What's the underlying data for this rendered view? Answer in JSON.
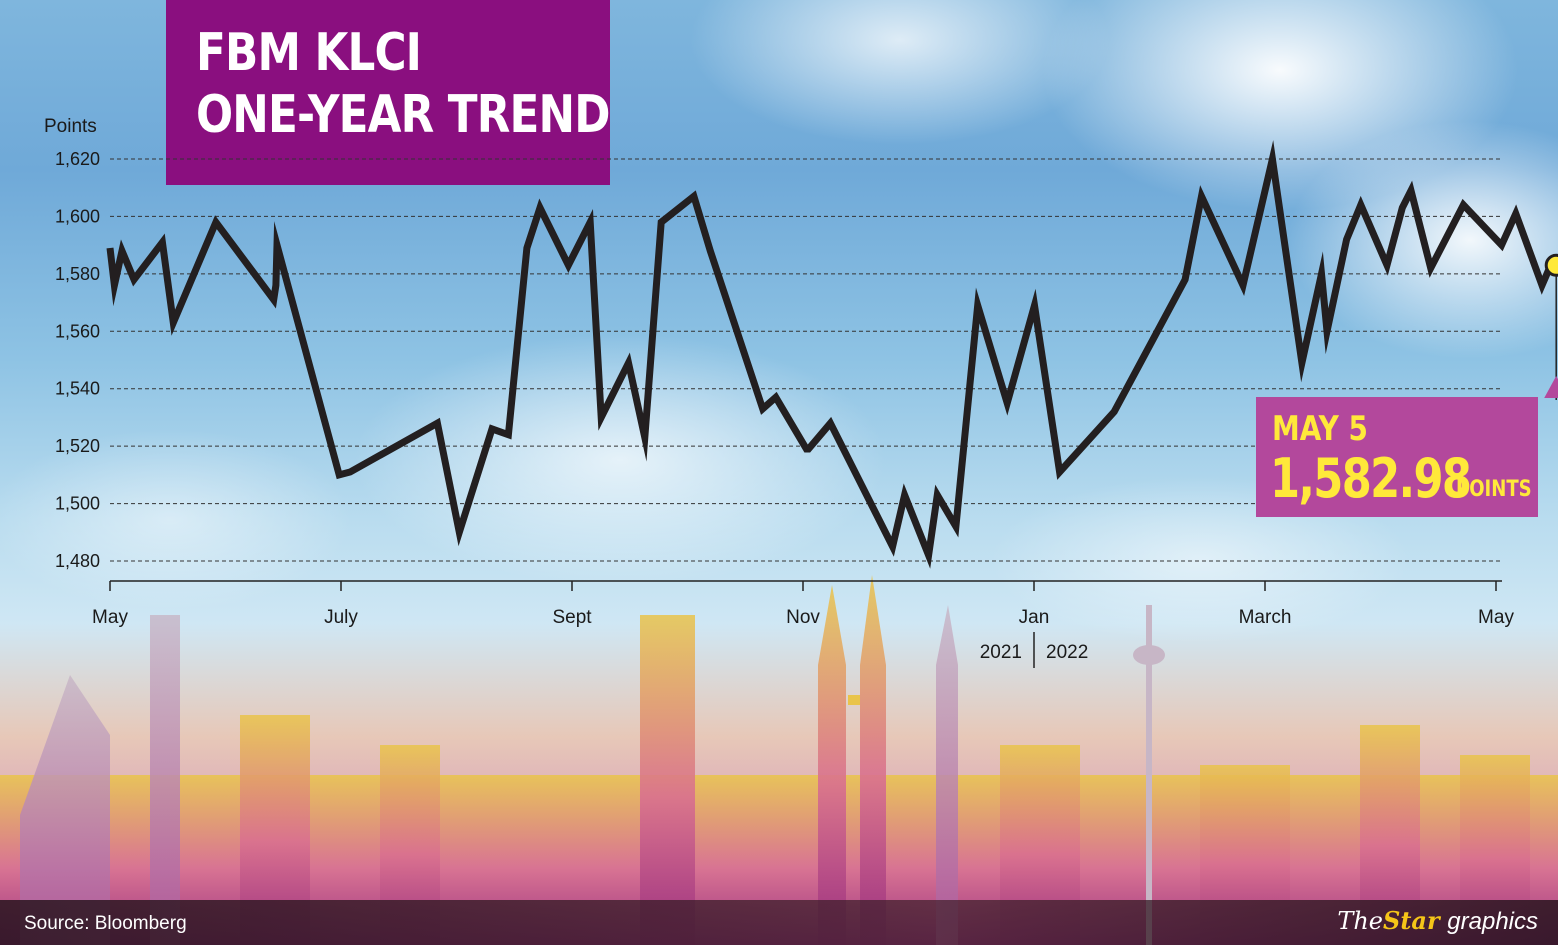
{
  "title_line1": "FBM KLCI",
  "title_line2": "ONE-YEAR TREND",
  "source": "Source: Bloomberg",
  "logo": {
    "the": "The",
    "star": "Star",
    "graphics": "graphics"
  },
  "callout": {
    "date": "MAY 5",
    "value": "1,582.98",
    "unit": "POINTS"
  },
  "chart_data": {
    "type": "line",
    "title": "FBM KLCI ONE-YEAR TREND",
    "ylabel": "Points",
    "xlabel": "",
    "ylim": [
      1480,
      1620
    ],
    "yticks": [
      1480,
      1500,
      1520,
      1540,
      1560,
      1580,
      1600,
      1620
    ],
    "ytick_labels": [
      "1,480",
      "1,500",
      "1,520",
      "1,540",
      "1,560",
      "1,580",
      "1,600",
      "1,620"
    ],
    "grid": true,
    "xticks": [
      {
        "label": "May",
        "month": 0
      },
      {
        "label": "July",
        "month": 2
      },
      {
        "label": "Sept",
        "month": 4
      },
      {
        "label": "Nov",
        "month": 6
      },
      {
        "label": "Jan",
        "month": 8
      },
      {
        "label": "March",
        "month": 10
      },
      {
        "label": "May",
        "month": 12
      }
    ],
    "year_labels": [
      "2021",
      "2022"
    ],
    "highlight": {
      "label": "May 5",
      "month": 12,
      "value": 1582.98
    },
    "series": [
      {
        "name": "",
        "x": [
          0.0,
          0.04,
          0.11,
          0.22,
          0.48,
          0.58,
          0.97,
          1.5,
          1.52,
          1.53,
          2.1,
          2.2,
          3.0,
          3.2,
          3.5,
          3.65,
          3.82,
          3.94,
          4.2,
          4.4,
          4.5,
          4.75,
          4.9,
          5.05,
          5.35,
          5.5,
          5.98,
          6.1,
          6.38,
          6.4,
          6.6,
          7.17,
          7.28,
          7.5,
          7.58,
          7.75,
          7.95,
          8.22,
          8.47,
          8.7,
          9.2,
          9.85,
          10.0,
          10.38,
          10.65,
          10.92,
          11.1,
          11.15,
          11.33,
          11.46,
          11.7,
          11.84,
          11.92,
          12.1,
          12.4,
          12.75,
          12.88,
          13.12,
          13.2,
          13.25
        ],
        "values": [
          1589,
          1576,
          1588,
          1578,
          1591,
          1563,
          1598,
          1571,
          1576,
          1590,
          1510,
          1511,
          1528,
          1490,
          1526,
          1524,
          1589,
          1603,
          1583,
          1598,
          1530,
          1549,
          1523,
          1598,
          1607,
          1588,
          1533,
          1537,
          1519,
          1519,
          1528,
          1485,
          1503,
          1482,
          1503,
          1492,
          1569,
          1535,
          1569,
          1511,
          1532,
          1578,
          1607,
          1576,
          1620,
          1549,
          1580,
          1560,
          1592,
          1604,
          1583,
          1603,
          1609,
          1582,
          1604,
          1590,
          1601,
          1576,
          1583,
          1582.98
        ]
      }
    ]
  }
}
